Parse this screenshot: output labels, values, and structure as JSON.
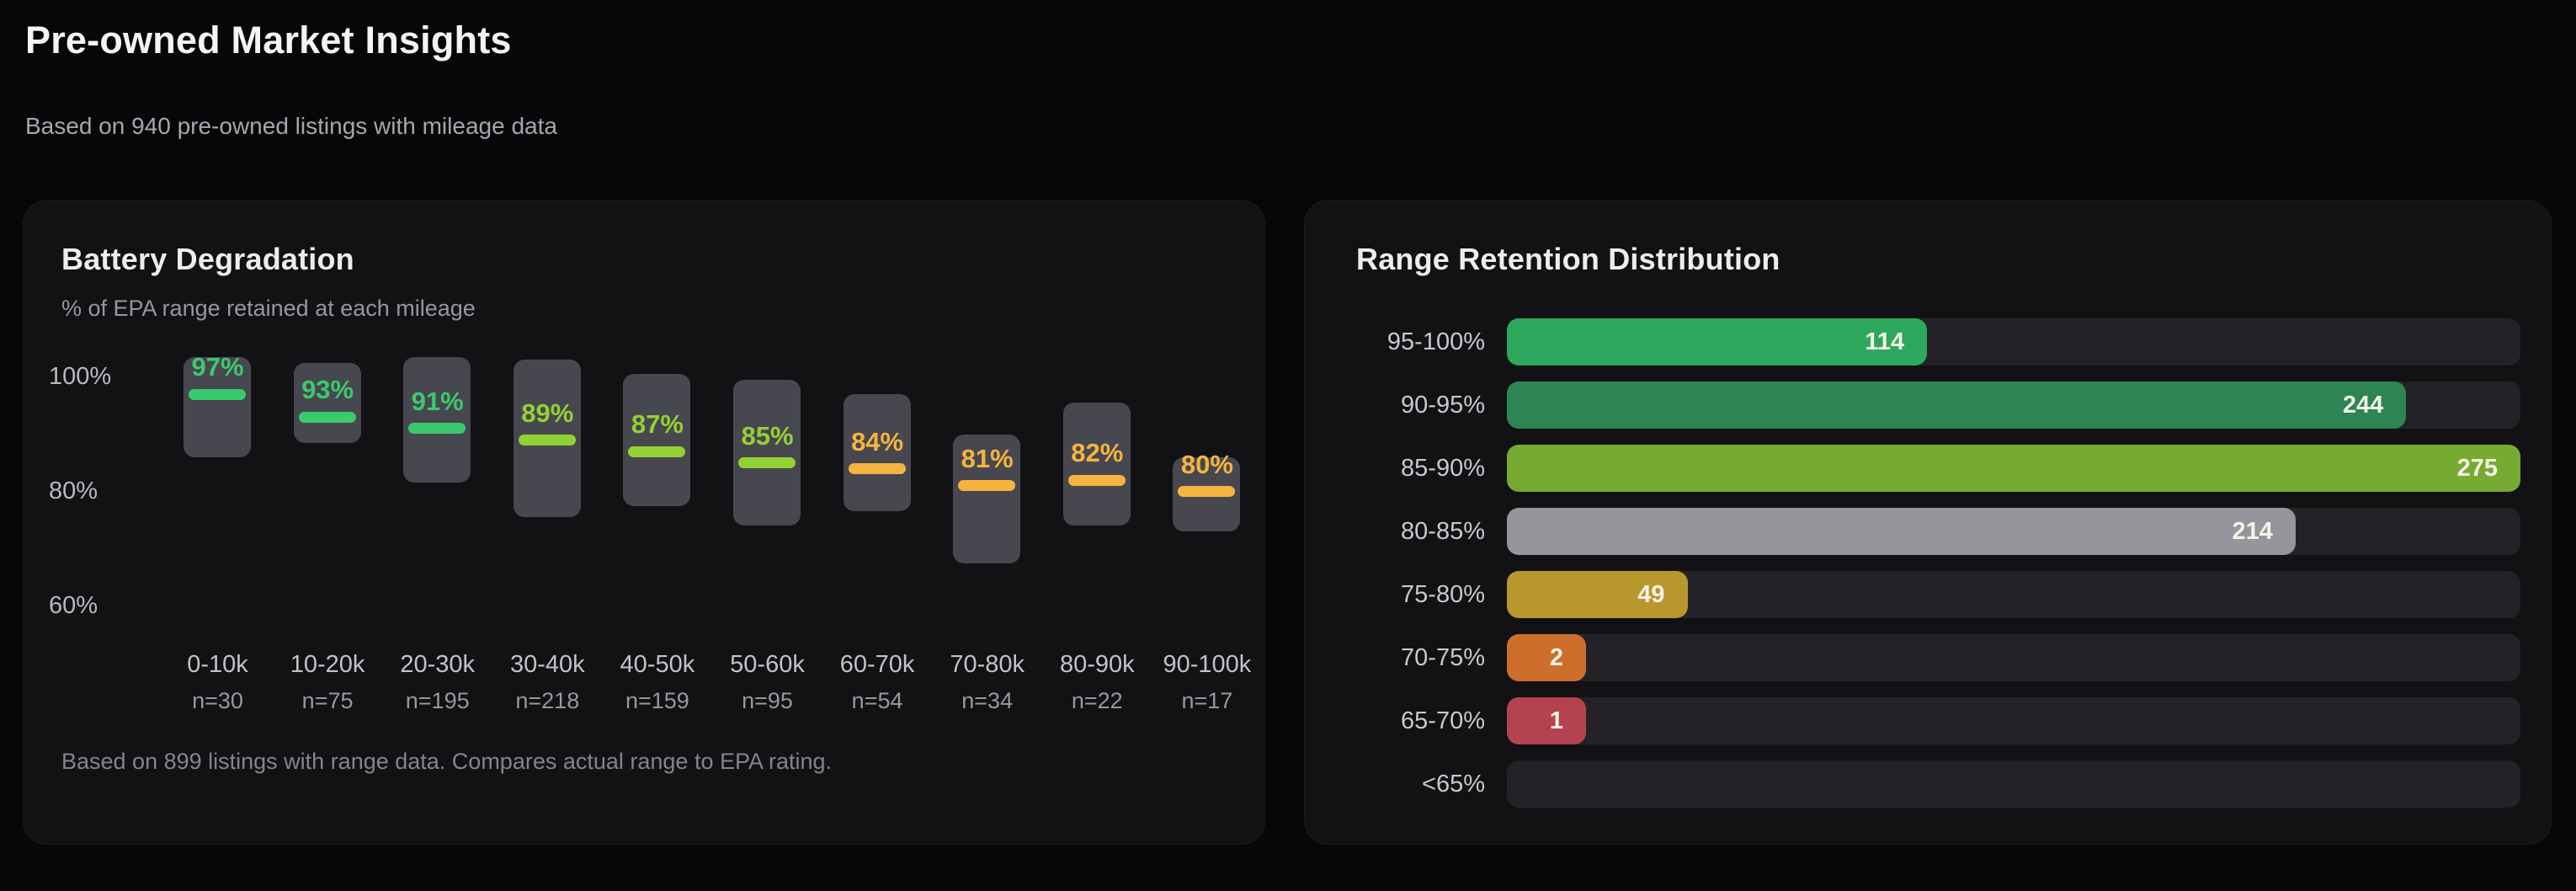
{
  "header": {
    "title": "Pre-owned Market Insights",
    "subtitle": "Based on 940 pre-owned listings with mileage data"
  },
  "chart_data": [
    {
      "type": "boxplot",
      "title": "Battery Degradation",
      "subtitle": "% of EPA range retained at each mileage",
      "footnote": "Based on 899 listings with range data. Compares actual range to EPA rating.",
      "ylabel": "% of EPA range retained",
      "ylim": [
        54.5,
        106
      ],
      "grid": false,
      "y_ticks": [
        {
          "label": "100%",
          "value": 100
        },
        {
          "label": "80%",
          "value": 80
        },
        {
          "label": "60%",
          "value": 60
        }
      ],
      "categories": [
        "0-10k",
        "10-20k",
        "20-30k",
        "30-40k",
        "40-50k",
        "50-60k",
        "60-70k",
        "70-80k",
        "80-90k",
        "90-100k"
      ],
      "sample_labels": [
        "n=30",
        "n=75",
        "n=195",
        "n=218",
        "n=159",
        "n=95",
        "n=54",
        "n=34",
        "n=22",
        "n=17"
      ],
      "points": [
        {
          "bucket": "0-10k",
          "n": 30,
          "median_pct": 97,
          "label": "97%",
          "range_high": 103.5,
          "range_low": 86,
          "color": "#3bc96e"
        },
        {
          "bucket": "10-20k",
          "n": 75,
          "median_pct": 93,
          "label": "93%",
          "range_high": 102.5,
          "range_low": 88.5,
          "color": "#3bc96e"
        },
        {
          "bucket": "20-30k",
          "n": 195,
          "median_pct": 91,
          "label": "91%",
          "range_high": 103.5,
          "range_low": 81.5,
          "color": "#3bc96e"
        },
        {
          "bucket": "30-40k",
          "n": 218,
          "median_pct": 89,
          "label": "89%",
          "range_high": 103,
          "range_low": 75.5,
          "color": "#92d134"
        },
        {
          "bucket": "40-50k",
          "n": 159,
          "median_pct": 87,
          "label": "87%",
          "range_high": 100.5,
          "range_low": 77.5,
          "color": "#92d134"
        },
        {
          "bucket": "50-60k",
          "n": 95,
          "median_pct": 85,
          "label": "85%",
          "range_high": 99.5,
          "range_low": 74,
          "color": "#92d134"
        },
        {
          "bucket": "60-70k",
          "n": 54,
          "median_pct": 84,
          "label": "84%",
          "range_high": 97,
          "range_low": 76.5,
          "color": "#f4b43e"
        },
        {
          "bucket": "70-80k",
          "n": 34,
          "median_pct": 81,
          "label": "81%",
          "range_high": 90,
          "range_low": 67.5,
          "color": "#f4b43e"
        },
        {
          "bucket": "80-90k",
          "n": 22,
          "median_pct": 82,
          "label": "82%",
          "range_high": 95.5,
          "range_low": 74,
          "color": "#f4b43e"
        },
        {
          "bucket": "90-100k",
          "n": 17,
          "median_pct": 80,
          "label": "80%",
          "range_high": 86,
          "range_low": 73,
          "color": "#f4b43e"
        }
      ],
      "box_fill": "#47474f"
    },
    {
      "type": "bar",
      "orientation": "horizontal",
      "title": "Range Retention Distribution",
      "categories": [
        "95-100%",
        "90-95%",
        "85-90%",
        "80-85%",
        "75-80%",
        "70-75%",
        "65-70%",
        "<65%"
      ],
      "values": [
        114,
        244,
        275,
        214,
        49,
        2,
        1,
        0
      ],
      "value_labels": [
        "114",
        "244",
        "275",
        "214",
        "49",
        "2",
        "1",
        ""
      ],
      "xmax": 275,
      "bar_colors": [
        "#2ea85c",
        "#2c8552",
        "#77aa31",
        "#95959c",
        "#b8982e",
        "#ce6e2c",
        "#b4434f",
        "none"
      ],
      "track_color": "#232327",
      "grid": false
    }
  ]
}
